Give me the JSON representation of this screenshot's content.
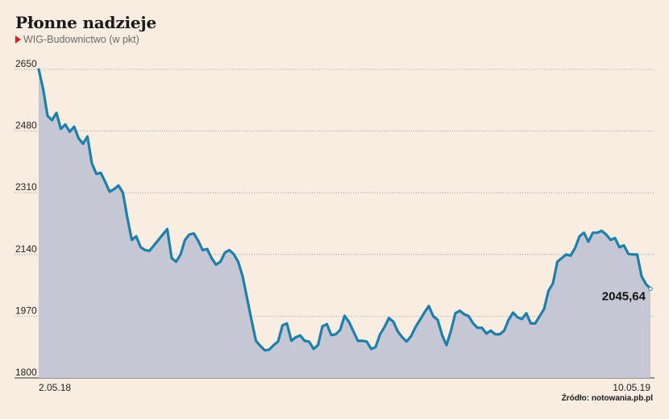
{
  "header": {
    "title": "Płonne nadzieje",
    "subtitle": "WIG-Budownictwo (w pkt)"
  },
  "footer": {
    "source": "Źródło: notowania.pb.pl"
  },
  "colors": {
    "background": "#f8ede0",
    "line": "#1d7faa",
    "area": "#c5c8d4",
    "accent": "#d8201f"
  },
  "chart_data": {
    "type": "area",
    "title": "Płonne nadzieje",
    "subtitle": "WIG-Budownictwo (w pkt)",
    "ylim": [
      1800,
      2650
    ],
    "yticks": [
      2650,
      2480,
      2310,
      2140,
      1970,
      1800
    ],
    "ytick_labels": [
      "2650",
      "2480",
      "2310",
      "2140",
      "1970",
      "1800"
    ],
    "xtick_labels": [
      "2.05.18",
      "10.05.19"
    ],
    "x_start": "2.05.18",
    "x_end": "10.05.19",
    "grid": true,
    "last_value": 2045.64,
    "last_value_label": "2045,64",
    "series": [
      {
        "values": [
          2650,
          2596,
          2522,
          2510,
          2530,
          2486,
          2498,
          2478,
          2492,
          2460,
          2445,
          2465,
          2391,
          2362,
          2365,
          2340,
          2313,
          2320,
          2330,
          2310,
          2241,
          2180,
          2190,
          2160,
          2152,
          2150,
          2165,
          2180,
          2195,
          2210,
          2130,
          2120,
          2140,
          2180,
          2195,
          2198,
          2177,
          2152,
          2155,
          2130,
          2112,
          2120,
          2145,
          2152,
          2141,
          2120,
          2080,
          2020,
          1960,
          1902,
          1888,
          1876,
          1878,
          1890,
          1900,
          1945,
          1950,
          1902,
          1912,
          1917,
          1902,
          1900,
          1880,
          1890,
          1942,
          1948,
          1918,
          1920,
          1932,
          1971,
          1954,
          1928,
          1902,
          1902,
          1900,
          1880,
          1885,
          1920,
          1940,
          1965,
          1955,
          1928,
          1912,
          1900,
          1915,
          1940,
          1960,
          1980,
          1998,
          1970,
          1960,
          1918,
          1890,
          1930,
          1978,
          1985,
          1975,
          1970,
          1950,
          1938,
          1938,
          1922,
          1930,
          1920,
          1920,
          1930,
          1960,
          1980,
          1967,
          1962,
          1978,
          1950,
          1950,
          1970,
          1990,
          2040,
          2060,
          2120,
          2130,
          2140,
          2137,
          2158,
          2190,
          2200,
          2175,
          2200,
          2200,
          2205,
          2195,
          2180,
          2185,
          2160,
          2165,
          2142,
          2140,
          2140,
          2080,
          2058,
          2045.64
        ]
      }
    ]
  }
}
